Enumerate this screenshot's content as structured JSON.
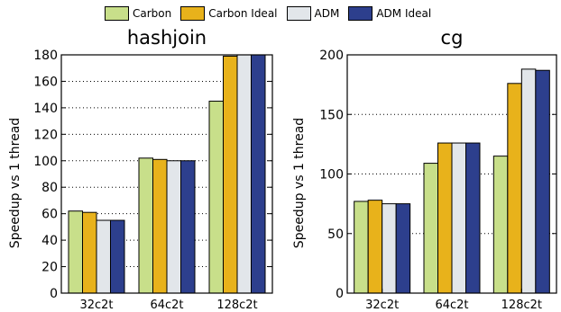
{
  "legend": [
    {
      "name": "Carbon",
      "color": "#c8df8a"
    },
    {
      "name": "Carbon Ideal",
      "color": "#e8b21b"
    },
    {
      "name": "ADM",
      "color": "#e2e6ea"
    },
    {
      "name": "ADM Ideal",
      "color": "#2d3f8d"
    }
  ],
  "chart_data": [
    {
      "type": "bar",
      "title": "hashjoin",
      "ylabel": "Speedup vs 1 thread",
      "xlabel": "",
      "categories": [
        "32c2t",
        "64c2t",
        "128c2t"
      ],
      "ylim": [
        0,
        180
      ],
      "yticks": [
        0,
        20,
        40,
        60,
        80,
        100,
        120,
        140,
        160,
        180
      ],
      "grid": "horizontal-dotted",
      "series": [
        {
          "name": "Carbon",
          "values": [
            62,
            102,
            145
          ]
        },
        {
          "name": "Carbon Ideal",
          "values": [
            61,
            101,
            179
          ]
        },
        {
          "name": "ADM",
          "values": [
            55,
            100,
            180
          ]
        },
        {
          "name": "ADM Ideal",
          "values": [
            55,
            100,
            180
          ]
        }
      ]
    },
    {
      "type": "bar",
      "title": "cg",
      "ylabel": "Speedup vs 1 thread",
      "xlabel": "",
      "categories": [
        "32c2t",
        "64c2t",
        "128c2t"
      ],
      "ylim": [
        0,
        200
      ],
      "yticks": [
        0,
        50,
        100,
        150,
        200
      ],
      "grid": "horizontal-dotted",
      "series": [
        {
          "name": "Carbon",
          "values": [
            77,
            109,
            115
          ]
        },
        {
          "name": "Carbon Ideal",
          "values": [
            78,
            126,
            176
          ]
        },
        {
          "name": "ADM",
          "values": [
            75,
            126,
            188
          ]
        },
        {
          "name": "ADM Ideal",
          "values": [
            75,
            126,
            187
          ]
        }
      ]
    }
  ]
}
